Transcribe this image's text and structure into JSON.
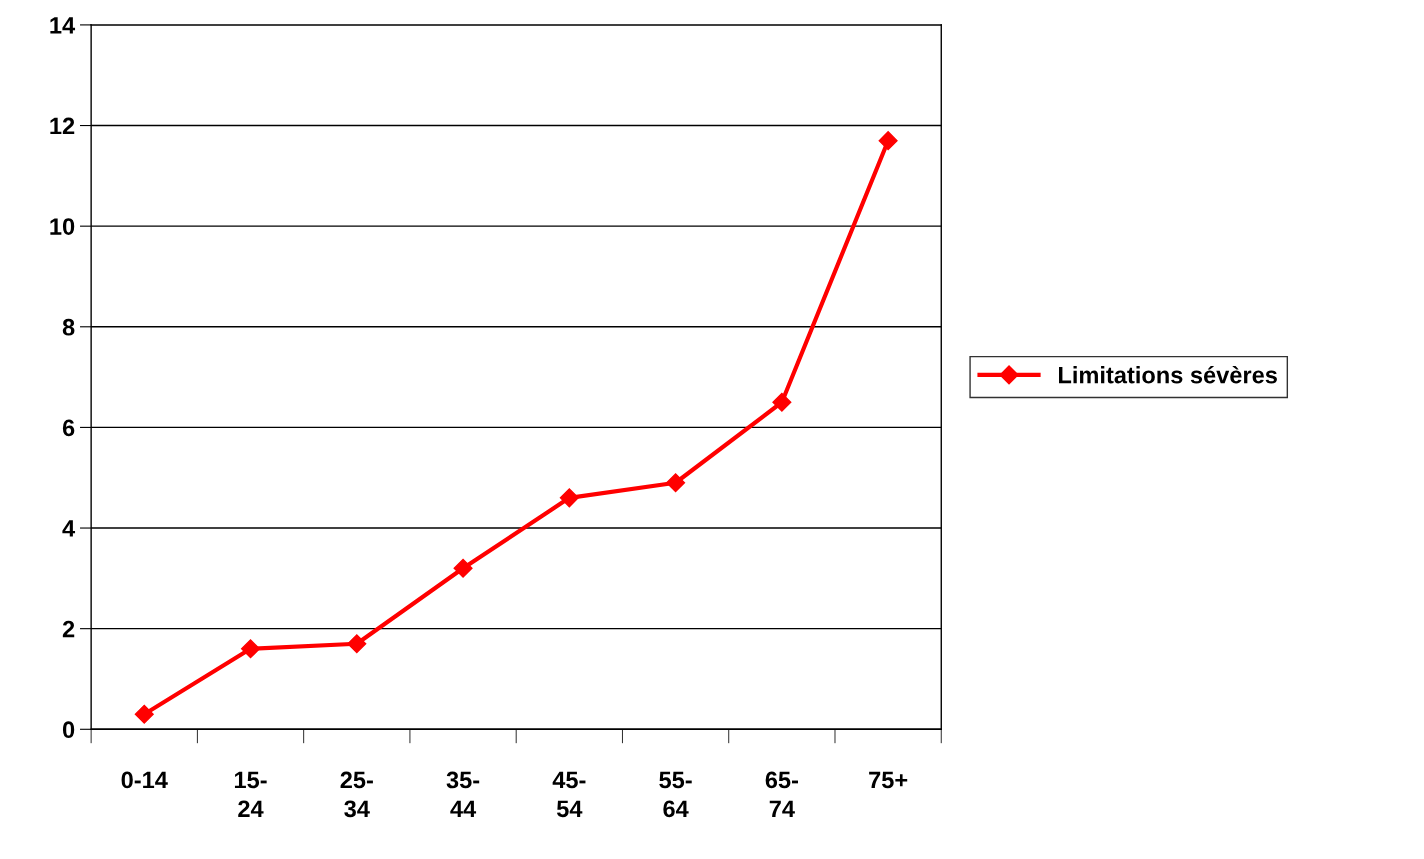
{
  "chart_data": {
    "type": "line",
    "categories": [
      "0-14",
      "15-\n24",
      "25-\n34",
      "35-\n44",
      "45-\n54",
      "55-\n64",
      "65-\n74",
      "75+"
    ],
    "series": [
      {
        "name": "Limitations sévères",
        "color": "#ff0000",
        "values": [
          0.3,
          1.6,
          1.7,
          3.2,
          4.6,
          4.9,
          6.5,
          11.7
        ]
      }
    ],
    "ylim": [
      0,
      14
    ],
    "yticks": [
      0,
      2,
      4,
      6,
      8,
      10,
      12,
      14
    ],
    "grid": "y",
    "legend": "right",
    "marker": "diamond",
    "line_style": "solid"
  }
}
